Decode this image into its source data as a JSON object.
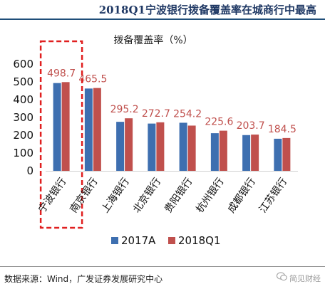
{
  "header": {
    "title": "2018Q1宁波银行拨备覆盖率在城商行中最高"
  },
  "chart_data": {
    "type": "bar",
    "title": "拨备覆盖率（%）",
    "categories": [
      "宁波银行",
      "南京银行",
      "上海银行",
      "北京银行",
      "贵阳银行",
      "杭州银行",
      "成都银行",
      "江苏银行"
    ],
    "series": [
      {
        "name": "2017A",
        "color": "#3e6fb0",
        "values": [
          493.3,
          462.5,
          275.5,
          265.6,
          270.2,
          211.5,
          200.9,
          180.4
        ]
      },
      {
        "name": "2018Q1",
        "color": "#c0504d",
        "values": [
          498.7,
          465.5,
          295.2,
          272.7,
          254.2,
          225.6,
          203.7,
          184.5
        ]
      }
    ],
    "data_labels": [
      "498.7",
      "465.5",
      "295.2",
      "272.7",
      "254.2",
      "225.6",
      "203.7",
      "184.5"
    ],
    "label_color": "#c0504d",
    "ylim": [
      0,
      600
    ],
    "yticks": [
      0,
      100,
      200,
      300,
      400,
      500,
      600
    ],
    "grid": false,
    "legend_position": "bottom",
    "highlight_category": "宁波银行",
    "highlight_color": "#e02020"
  },
  "footer": {
    "source": "数据来源：Wind，广发证券发展研究中心",
    "watermark": "简见财经",
    "watermark_icon": "wechat-icon"
  }
}
